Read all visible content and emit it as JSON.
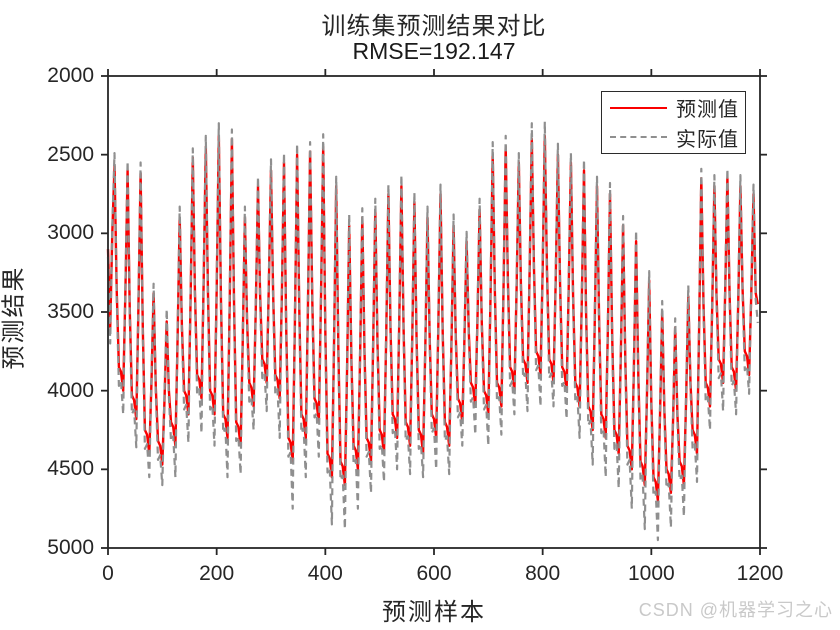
{
  "title": "训练集预测结果对比",
  "subtitle": "RMSE=192.147",
  "watermark": "CSDN @机器学习之心",
  "axis_color": "#262626",
  "chart_data": {
    "type": "line",
    "title": "训练集预测结果对比",
    "subtitle": "RMSE=192.147",
    "xlabel": "预测样本",
    "ylabel": "预测结果",
    "xlim": [
      0,
      1200
    ],
    "ylim": [
      2000,
      5000
    ],
    "y_axis_reversed": true,
    "grid": false,
    "x_ticks": [
      0,
      200,
      400,
      600,
      800,
      1000,
      1200
    ],
    "y_ticks": [
      2000,
      2500,
      3000,
      3500,
      4000,
      4500,
      5000
    ],
    "legend_position": "top-right",
    "x_start": 0,
    "x_step": 4,
    "series": [
      {
        "name": "预测值",
        "color": "#fa0000",
        "style": "solid",
        "line_width": 2.4,
        "values": [
          3100,
          3600,
          3000,
          2570,
          3360,
          3850,
          3880,
          4000,
          3370,
          2600,
          3470,
          4030,
          4060,
          4180,
          3480,
          2620,
          3600,
          4250,
          4280,
          4400,
          3940,
          3380,
          3980,
          4320,
          4350,
          4470,
          4060,
          3560,
          4000,
          4200,
          4230,
          4350,
          3700,
          2900,
          3590,
          4000,
          4030,
          4150,
          3420,
          2520,
          3360,
          3900,
          3930,
          4050,
          3330,
          2450,
          3390,
          4000,
          4030,
          4150,
          3350,
          2380,
          3440,
          4150,
          4180,
          4300,
          3450,
          2400,
          3470,
          4200,
          4230,
          4350,
          3700,
          2900,
          3560,
          3950,
          3980,
          4100,
          3470,
          2700,
          3390,
          3800,
          3830,
          3950,
          3340,
          2600,
          3400,
          3900,
          3930,
          4050,
          3380,
          2550,
          3600,
          4300,
          4330,
          4450,
          3570,
          2500,
          3490,
          4150,
          4180,
          4300,
          3480,
          2480,
          3430,
          4050,
          4080,
          4200,
          3410,
          2450,
          3610,
          4400,
          4430,
          4550,
          3720,
          2700,
          3750,
          4450,
          4480,
          4600,
          3860,
          2950,
          3800,
          4350,
          4380,
          4500,
          3780,
          2900,
          3750,
          4300,
          4330,
          4450,
          3730,
          2850,
          3700,
          4250,
          4280,
          4400,
          3660,
          2750,
          3600,
          4150,
          4180,
          4300,
          3580,
          2700,
          3610,
          4200,
          4230,
          4350,
          3650,
          2800,
          3680,
          4250,
          4280,
          4400,
          3730,
          2900,
          3670,
          4150,
          4180,
          4300,
          3600,
          2750,
          3630,
          4200,
          4230,
          4350,
          3720,
          2950,
          3640,
          4050,
          4080,
          4200,
          3680,
          3050,
          3630,
          3950,
          3980,
          4100,
          3540,
          2850,
          3570,
          4000,
          4030,
          4150,
          3410,
          2500,
          3380,
          3950,
          3980,
          4100,
          3360,
          2450,
          3300,
          3850,
          3880,
          4000,
          3350,
          2550,
          3320,
          3800,
          3830,
          3950,
          3250,
          2400,
          3230,
          3750,
          3780,
          3900,
          3220,
          2380,
          3240,
          3800,
          3830,
          3950,
          3300,
          2500,
          3330,
          3850,
          3880,
          4000,
          3350,
          2550,
          3400,
          3950,
          3980,
          4100,
          3430,
          2600,
          3510,
          4100,
          4130,
          4250,
          3550,
          2700,
          3580,
          4150,
          4180,
          4300,
          3600,
          2750,
          3660,
          4250,
          4280,
          4400,
          3750,
          2950,
          3800,
          4350,
          4380,
          4500,
          3850,
          3050,
          3900,
          4450,
          4480,
          4600,
          4020,
          3300,
          4070,
          4550,
          4580,
          4700,
          4160,
          3500,
          4130,
          4500,
          4530,
          4650,
          4180,
          3600,
          4150,
          4450,
          4480,
          4600,
          4060,
          3400,
          3950,
          4250,
          4280,
          4400,
          3610,
          2650,
          3450,
          3950,
          3980,
          4100,
          3470,
          2700,
          3390,
          3800,
          3830,
          3950,
          3370,
          2650,
          3390,
          3850,
          3880,
          4000,
          3420,
          2700,
          3360,
          3750,
          3780,
          3900,
          3380,
          2750,
          3380,
          3450
        ]
      },
      {
        "name": "实际值",
        "color": "#8f8f8f",
        "style": "dashed",
        "line_width": 2.2,
        "values": [
          3150,
          3700,
          2950,
          2490,
          3400,
          3970,
          3940,
          4150,
          3320,
          2540,
          3510,
          4150,
          4120,
          4360,
          3430,
          2550,
          3640,
          4370,
          4340,
          4550,
          3890,
          3320,
          4020,
          4440,
          4410,
          4600,
          4010,
          3480,
          4040,
          4320,
          4290,
          4550,
          3650,
          2830,
          3630,
          4120,
          4090,
          4330,
          3370,
          2460,
          3400,
          4020,
          3990,
          4270,
          3280,
          2380,
          3430,
          4120,
          4090,
          4350,
          3300,
          2300,
          3480,
          4270,
          4240,
          4550,
          3400,
          2340,
          3510,
          4320,
          4290,
          4530,
          3650,
          2830,
          3600,
          4070,
          4040,
          4250,
          3420,
          2640,
          3430,
          3920,
          3890,
          4130,
          3290,
          2530,
          3440,
          4020,
          3990,
          4300,
          3330,
          2490,
          3640,
          4420,
          4390,
          4750,
          3520,
          2430,
          3530,
          4270,
          4240,
          4550,
          3430,
          2420,
          3470,
          4170,
          4140,
          4420,
          3360,
          2370,
          3650,
          4520,
          4490,
          4850,
          3670,
          2640,
          3790,
          4570,
          4540,
          4880,
          3810,
          2880,
          3840,
          4470,
          4440,
          4750,
          3730,
          2840,
          3790,
          4420,
          4390,
          4650,
          3680,
          2780,
          3740,
          4370,
          4340,
          4580,
          3610,
          2690,
          3640,
          4270,
          4240,
          4500,
          3530,
          2630,
          3650,
          4320,
          4290,
          4530,
          3600,
          2740,
          3720,
          4370,
          4340,
          4550,
          3680,
          2830,
          3710,
          4270,
          4240,
          4500,
          3550,
          2690,
          3670,
          4320,
          4290,
          4530,
          3670,
          2880,
          3680,
          4170,
          4140,
          4350,
          3630,
          2990,
          3670,
          4070,
          4040,
          4280,
          3490,
          2780,
          3610,
          4120,
          4090,
          4350,
          3360,
          2420,
          3420,
          4070,
          4040,
          4280,
          3310,
          2380,
          3340,
          3970,
          3940,
          4150,
          3300,
          2490,
          3360,
          3920,
          3890,
          4130,
          3200,
          2300,
          3270,
          3870,
          3840,
          4100,
          3170,
          2290,
          3280,
          3920,
          3890,
          4100,
          3250,
          2430,
          3370,
          3970,
          3940,
          4180,
          3300,
          2490,
          3440,
          4070,
          4040,
          4300,
          3380,
          2530,
          3550,
          4220,
          4190,
          4470,
          3500,
          2640,
          3620,
          4270,
          4240,
          4550,
          3550,
          2680,
          3700,
          4370,
          4340,
          4620,
          3700,
          2890,
          3840,
          4470,
          4440,
          4750,
          3800,
          2980,
          3940,
          4570,
          4540,
          4880,
          3970,
          3240,
          4110,
          4670,
          4640,
          4950,
          4110,
          3430,
          4170,
          4620,
          4590,
          4870,
          4130,
          3540,
          4190,
          4570,
          4540,
          4800,
          4010,
          3330,
          3990,
          4370,
          4340,
          4580,
          3560,
          2590,
          3490,
          4070,
          4040,
          4250,
          3420,
          2630,
          3430,
          3920,
          3890,
          4130,
          3320,
          2590,
          3430,
          3970,
          3940,
          4150,
          3370,
          2630,
          3400,
          3870,
          3840,
          4020,
          3330,
          2690,
          3420,
          3570
        ]
      }
    ]
  }
}
